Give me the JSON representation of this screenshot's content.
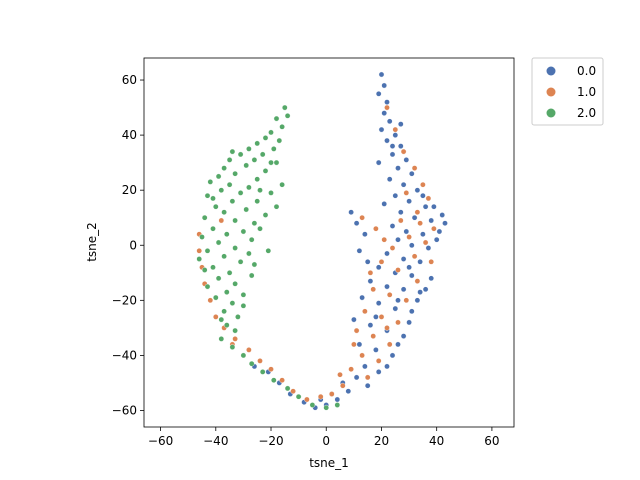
{
  "chart_data": {
    "type": "scatter",
    "xlabel": "tsne_1",
    "ylabel": "tsne_2",
    "xlim": [
      -66,
      68
    ],
    "ylim": [
      -66,
      68
    ],
    "xticks": [
      -60,
      -40,
      -20,
      0,
      20,
      40,
      60
    ],
    "yticks": [
      -60,
      -40,
      -20,
      0,
      20,
      40,
      60
    ],
    "grid": false,
    "legend": {
      "placement": "outside-upper-right",
      "entries": [
        {
          "label": "0.0",
          "color": "#4c72b0"
        },
        {
          "label": "1.0",
          "color": "#dd8452"
        },
        {
          "label": "2.0",
          "color": "#55a868"
        }
      ]
    },
    "series": [
      {
        "color": "#4c72b0",
        "points": [
          [
            20,
            62
          ],
          [
            21,
            58
          ],
          [
            19,
            55
          ],
          [
            22,
            52
          ],
          [
            21,
            48
          ],
          [
            23,
            45
          ],
          [
            20,
            42
          ],
          [
            25,
            40
          ],
          [
            22,
            38
          ],
          [
            27,
            36
          ],
          [
            24,
            33
          ],
          [
            29,
            31
          ],
          [
            26,
            28
          ],
          [
            31,
            26
          ],
          [
            23,
            24
          ],
          [
            28,
            22
          ],
          [
            33,
            20
          ],
          [
            25,
            18
          ],
          [
            30,
            16
          ],
          [
            36,
            14
          ],
          [
            27,
            12
          ],
          [
            32,
            10
          ],
          [
            38,
            9
          ],
          [
            24,
            7
          ],
          [
            29,
            5
          ],
          [
            35,
            4
          ],
          [
            41,
            5
          ],
          [
            26,
            2
          ],
          [
            31,
            0
          ],
          [
            37,
            -1
          ],
          [
            22,
            -3
          ],
          [
            28,
            -5
          ],
          [
            34,
            -6
          ],
          [
            19,
            -8
          ],
          [
            25,
            -10
          ],
          [
            31,
            -11
          ],
          [
            16,
            -13
          ],
          [
            22,
            -15
          ],
          [
            28,
            -16
          ],
          [
            34,
            -17
          ],
          [
            13,
            -19
          ],
          [
            19,
            -21
          ],
          [
            25,
            -23
          ],
          [
            31,
            -24
          ],
          [
            10,
            -27
          ],
          [
            16,
            -29
          ],
          [
            22,
            -31
          ],
          [
            28,
            -33
          ],
          [
            12,
            -36
          ],
          [
            18,
            -38
          ],
          [
            24,
            -40
          ],
          [
            14,
            -44
          ],
          [
            19,
            -46
          ],
          [
            11,
            -48
          ],
          [
            15,
            -51
          ],
          [
            8,
            -53
          ],
          [
            4,
            -56
          ],
          [
            0,
            -58
          ],
          [
            -4,
            -59
          ],
          [
            -8,
            -57
          ],
          [
            -13,
            -54
          ],
          [
            -17,
            -50
          ],
          [
            -21,
            -46
          ],
          [
            -26,
            -44
          ],
          [
            9,
            12
          ],
          [
            11,
            8
          ],
          [
            14,
            4
          ],
          [
            12,
            -2
          ],
          [
            15,
            -6
          ],
          [
            43,
            8
          ],
          [
            40,
            2
          ],
          [
            38,
            -12
          ],
          [
            36,
            -16
          ],
          [
            33,
            -20
          ],
          [
            30,
            -28
          ],
          [
            26,
            -36
          ],
          [
            22,
            -44
          ],
          [
            6,
            -50
          ],
          [
            2,
            -54
          ],
          [
            -2,
            -56
          ],
          [
            27,
            44
          ],
          [
            24,
            36
          ],
          [
            19,
            30
          ],
          [
            21,
            15
          ],
          [
            26,
            -20
          ],
          [
            18,
            -26
          ],
          [
            30,
            -8
          ],
          [
            35,
            18
          ],
          [
            39,
            14
          ],
          [
            42,
            11
          ]
        ]
      },
      {
        "color": "#dd8452",
        "points": [
          [
            22,
            50
          ],
          [
            25,
            42
          ],
          [
            28,
            34
          ],
          [
            32,
            28
          ],
          [
            35,
            22
          ],
          [
            29,
            19
          ],
          [
            37,
            17
          ],
          [
            33,
            12
          ],
          [
            27,
            9
          ],
          [
            39,
            6
          ],
          [
            30,
            3
          ],
          [
            36,
            1
          ],
          [
            24,
            -1
          ],
          [
            32,
            -4
          ],
          [
            20,
            -6
          ],
          [
            26,
            -9
          ],
          [
            33,
            -13
          ],
          [
            17,
            -16
          ],
          [
            23,
            -18
          ],
          [
            29,
            -20
          ],
          [
            14,
            -24
          ],
          [
            20,
            -26
          ],
          [
            26,
            -28
          ],
          [
            11,
            -31
          ],
          [
            17,
            -33
          ],
          [
            23,
            -36
          ],
          [
            13,
            -40
          ],
          [
            19,
            -42
          ],
          [
            9,
            -45
          ],
          [
            15,
            -48
          ],
          [
            6,
            -51
          ],
          [
            2,
            -54
          ],
          [
            -2,
            -55
          ],
          [
            -7,
            -56
          ],
          [
            -12,
            -53
          ],
          [
            -16,
            -49
          ],
          [
            -20,
            -45
          ],
          [
            -24,
            -42
          ],
          [
            -28,
            -38
          ],
          [
            -33,
            -34
          ],
          [
            -37,
            -30
          ],
          [
            -40,
            -26
          ],
          [
            -42,
            -20
          ],
          [
            -44,
            -14
          ],
          [
            -45,
            -8
          ],
          [
            -46,
            -2
          ],
          [
            -46,
            4
          ],
          [
            -44,
            10
          ],
          [
            -38,
            9
          ],
          [
            -34,
            -36
          ],
          [
            13,
            10
          ],
          [
            18,
            6
          ],
          [
            21,
            2
          ],
          [
            10,
            -36
          ],
          [
            5,
            -47
          ],
          [
            -10,
            -55
          ],
          [
            16,
            -10
          ],
          [
            38,
            -6
          ],
          [
            34,
            8
          ],
          [
            22,
            -30
          ]
        ]
      },
      {
        "color": "#55a868",
        "points": [
          [
            -15,
            50
          ],
          [
            -14,
            47
          ],
          [
            -18,
            46
          ],
          [
            -16,
            43
          ],
          [
            -20,
            41
          ],
          [
            -22,
            39
          ],
          [
            -17,
            38
          ],
          [
            -25,
            37
          ],
          [
            -19,
            35
          ],
          [
            -28,
            35
          ],
          [
            -23,
            33
          ],
          [
            -31,
            33
          ],
          [
            -26,
            31
          ],
          [
            -35,
            31
          ],
          [
            -18,
            30
          ],
          [
            -29,
            29
          ],
          [
            -37,
            28
          ],
          [
            -22,
            27
          ],
          [
            -33,
            26
          ],
          [
            -39,
            25
          ],
          [
            -25,
            24
          ],
          [
            -42,
            23
          ],
          [
            -35,
            22
          ],
          [
            -28,
            21
          ],
          [
            -16,
            22
          ],
          [
            -38,
            20
          ],
          [
            -31,
            19
          ],
          [
            -20,
            19
          ],
          [
            -43,
            18
          ],
          [
            -34,
            16
          ],
          [
            -25,
            16
          ],
          [
            -40,
            14
          ],
          [
            -29,
            13
          ],
          [
            -18,
            14
          ],
          [
            -37,
            12
          ],
          [
            -22,
            11
          ],
          [
            -44,
            10
          ],
          [
            -33,
            9
          ],
          [
            -26,
            8
          ],
          [
            -41,
            6
          ],
          [
            -30,
            5
          ],
          [
            -36,
            4
          ],
          [
            -45,
            3
          ],
          [
            -27,
            2
          ],
          [
            -39,
            1
          ],
          [
            -33,
            -1
          ],
          [
            -43,
            -2
          ],
          [
            -28,
            -3
          ],
          [
            -37,
            -4
          ],
          [
            -31,
            -6
          ],
          [
            -41,
            -8
          ],
          [
            -35,
            -10
          ],
          [
            -27,
            -11
          ],
          [
            -39,
            -12
          ],
          [
            -33,
            -14
          ],
          [
            -43,
            -15
          ],
          [
            -36,
            -17
          ],
          [
            -30,
            -18
          ],
          [
            -40,
            -19
          ],
          [
            -34,
            -21
          ],
          [
            -37,
            -24
          ],
          [
            -32,
            -26
          ],
          [
            -36,
            -29
          ],
          [
            -33,
            -31
          ],
          [
            -38,
            -34
          ],
          [
            -34,
            -37
          ],
          [
            -30,
            -40
          ],
          [
            -27,
            -43
          ],
          [
            -23,
            -46
          ],
          [
            -19,
            -49
          ],
          [
            -14,
            -52
          ],
          [
            -10,
            -55
          ],
          [
            -5,
            -58
          ],
          [
            0,
            -59
          ],
          [
            4,
            -58
          ],
          [
            -24,
            6
          ],
          [
            -21,
            -2
          ],
          [
            -26,
            -7
          ],
          [
            -46,
            -5
          ],
          [
            -44,
            -9
          ],
          [
            -20,
            30
          ],
          [
            -24,
            20
          ],
          [
            -34,
            34
          ],
          [
            -41,
            17
          ],
          [
            -30,
            -22
          ],
          [
            -38,
            -27
          ]
        ]
      }
    ]
  }
}
